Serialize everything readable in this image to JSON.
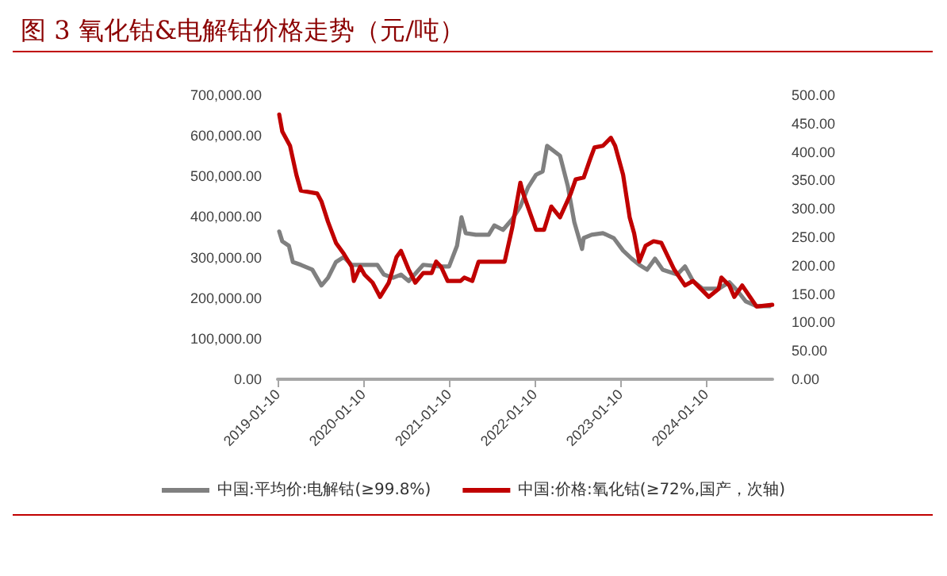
{
  "chart_data": {
    "type": "line",
    "title": "图 3 氧化钴&电解钴价格走势（元/吨）",
    "xlim": [
      "2019-01-10",
      "2024-10-20"
    ],
    "xticks": [
      "2019-01-10",
      "2020-01-10",
      "2021-01-10",
      "2022-01-10",
      "2023-01-10",
      "2024-01-10"
    ],
    "ylim": [
      0,
      700000
    ],
    "yticks": [
      {
        "value": 0,
        "label": "0.00"
      },
      {
        "value": 100000,
        "label": "100,000.00"
      },
      {
        "value": 200000,
        "label": "200,000.00"
      },
      {
        "value": 300000,
        "label": "300,000.00"
      },
      {
        "value": 400000,
        "label": "400,000.00"
      },
      {
        "value": 500000,
        "label": "500,000.00"
      },
      {
        "value": 600000,
        "label": "600,000.00"
      },
      {
        "value": 700000,
        "label": "700,000.00"
      }
    ],
    "y2lim": [
      0,
      500
    ],
    "y2ticks": [
      {
        "value": 0,
        "label": "0.00"
      },
      {
        "value": 50,
        "label": "50.00"
      },
      {
        "value": 100,
        "label": "100.00"
      },
      {
        "value": 150,
        "label": "150.00"
      },
      {
        "value": 200,
        "label": "200.00"
      },
      {
        "value": 250,
        "label": "250.00"
      },
      {
        "value": 300,
        "label": "300.00"
      },
      {
        "value": 350,
        "label": "350.00"
      },
      {
        "value": 400,
        "label": "400.00"
      },
      {
        "value": 450,
        "label": "450.00"
      },
      {
        "value": 500,
        "label": "500.00"
      }
    ],
    "grid": false,
    "legend": "bottom",
    "marker": "none",
    "line_style": "solid",
    "series": [
      {
        "name": "中国:平均价:电解钴(≥99.8%)",
        "color": "#808080",
        "x": [
          "2019-01-17",
          "2019-01-30",
          "2019-02-27",
          "2019-03-16",
          "2019-04-19",
          "2019-06-07",
          "2019-07-16",
          "2019-08-13",
          "2019-09-16",
          "2019-10-19",
          "2019-11-22",
          "2020-01-16",
          "2020-03-10",
          "2020-04-07",
          "2020-05-16",
          "2020-06-19",
          "2020-07-22",
          "2020-09-22",
          "2020-12-01",
          "2021-01-10",
          "2021-02-13",
          "2021-03-04",
          "2021-03-22",
          "2021-05-04",
          "2021-06-28",
          "2021-07-22",
          "2021-08-28",
          "2021-10-07",
          "2021-11-10",
          "2021-12-13",
          "2022-01-16",
          "2022-02-13",
          "2022-03-04",
          "2022-04-28",
          "2022-05-31",
          "2022-06-28",
          "2022-07-31",
          "2022-08-07",
          "2022-09-10",
          "2022-10-28",
          "2022-12-13",
          "2023-01-22",
          "2023-02-28",
          "2023-04-01",
          "2023-05-04",
          "2023-06-07",
          "2023-07-10",
          "2023-09-10",
          "2023-10-13",
          "2023-11-16",
          "2023-12-28",
          "2024-03-04",
          "2024-04-19",
          "2024-05-22",
          "2024-06-28",
          "2024-08-13",
          "2024-10-07"
        ],
        "values": [
          364000,
          340000,
          329000,
          289000,
          282000,
          270000,
          231000,
          250000,
          289000,
          301000,
          282000,
          282000,
          282000,
          258000,
          250000,
          258000,
          242000,
          282000,
          278000,
          278000,
          329000,
          399000,
          360000,
          356000,
          356000,
          379000,
          368000,
          395000,
          426000,
          473000,
          504000,
          512000,
          575000,
          551000,
          477000,
          387000,
          321000,
          348000,
          356000,
          360000,
          348000,
          317000,
          297000,
          282000,
          270000,
          297000,
          270000,
          258000,
          278000,
          242000,
          223000,
          223000,
          239000,
          219000,
          192000,
          180000,
          180000
        ]
      },
      {
        "name": "中国:价格:氧化钴(≥72%,国产，次轴)",
        "color": "#c00000",
        "axis": "y2",
        "x": [
          "2019-01-17",
          "2019-01-30",
          "2019-03-04",
          "2019-03-31",
          "2019-04-19",
          "2019-06-28",
          "2019-07-16",
          "2019-08-13",
          "2019-09-16",
          "2019-10-19",
          "2019-11-22",
          "2019-12-01",
          "2019-12-28",
          "2020-01-16",
          "2020-02-19",
          "2020-03-22",
          "2020-04-28",
          "2020-05-31",
          "2020-06-19",
          "2020-07-22",
          "2020-08-19",
          "2020-09-22",
          "2020-10-28",
          "2020-11-16",
          "2020-12-07",
          "2021-01-04",
          "2021-02-28",
          "2021-03-16",
          "2021-04-19",
          "2021-05-16",
          "2021-07-10",
          "2021-09-04",
          "2021-10-07",
          "2021-11-10",
          "2021-11-22",
          "2021-12-28",
          "2022-01-16",
          "2022-02-19",
          "2022-03-22",
          "2022-04-28",
          "2022-06-13",
          "2022-07-04",
          "2022-08-07",
          "2022-09-04",
          "2022-09-22",
          "2022-10-28",
          "2022-12-01",
          "2022-12-19",
          "2023-01-22",
          "2023-02-19",
          "2023-03-10",
          "2023-04-01",
          "2023-04-28",
          "2023-06-01",
          "2023-07-04",
          "2023-08-28",
          "2023-10-13",
          "2023-11-16",
          "2024-01-22",
          "2024-03-04",
          "2024-03-16",
          "2024-04-19",
          "2024-05-10",
          "2024-06-13",
          "2024-07-16",
          "2024-08-13",
          "2024-10-19"
        ],
        "values": [
          466,
          436,
          411,
          360,
          332,
          327,
          313,
          277,
          240,
          221,
          198,
          173,
          198,
          184,
          170,
          145,
          170,
          215,
          226,
          193,
          170,
          187,
          187,
          207,
          198,
          173,
          173,
          179,
          173,
          207,
          207,
          207,
          268,
          346,
          327,
          285,
          263,
          263,
          304,
          285,
          327,
          352,
          355,
          388,
          408,
          411,
          425,
          411,
          360,
          285,
          257,
          207,
          235,
          243,
          240,
          193,
          165,
          173,
          145,
          159,
          179,
          165,
          145,
          165,
          145,
          128,
          131
        ]
      }
    ]
  }
}
